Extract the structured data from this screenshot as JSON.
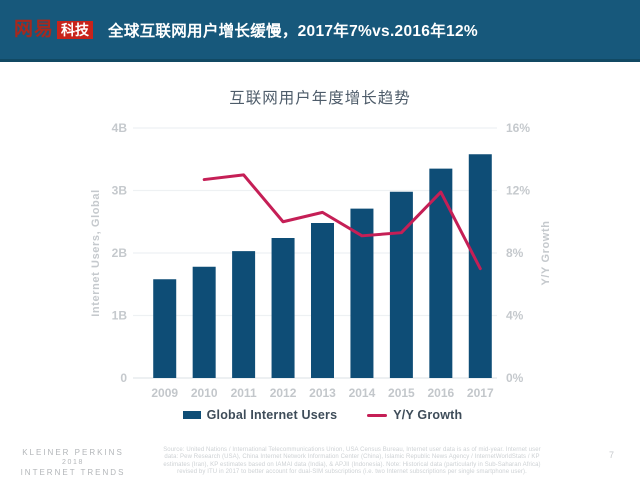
{
  "header": {
    "logo_brand": "网易",
    "logo_sub": "科技",
    "title": "全球互联网用户增长缓慢，2017年7%vs.2016年12%"
  },
  "chart_data": {
    "type": "bar",
    "title": "互联网用户年度增长趋势",
    "categories": [
      "2009",
      "2010",
      "2011",
      "2012",
      "2013",
      "2014",
      "2015",
      "2016",
      "2017"
    ],
    "series": [
      {
        "name": "Global Internet Users",
        "render": "bar",
        "axis": "left",
        "unit": "B",
        "color": "#0E4D76",
        "values": [
          1.58,
          1.78,
          2.03,
          2.24,
          2.48,
          2.71,
          2.98,
          3.35,
          3.58
        ]
      },
      {
        "name": "Y/Y Growth",
        "render": "line",
        "axis": "right",
        "unit": "%",
        "color": "#C51F56",
        "values": [
          null,
          12.7,
          13.0,
          10.0,
          10.6,
          9.1,
          9.3,
          11.9,
          7.0
        ]
      }
    ],
    "left_axis": {
      "label": "Internet Users, Global",
      "min": 0,
      "max": 4,
      "ticks": [
        "0",
        "1B",
        "2B",
        "3B",
        "4B"
      ]
    },
    "right_axis": {
      "label": "Y/Y Growth",
      "min": 0,
      "max": 16,
      "ticks": [
        "0%",
        "4%",
        "8%",
        "12%",
        "16%"
      ]
    },
    "grid": true,
    "legend_position": "bottom"
  },
  "footer": {
    "brand_lines": [
      "KLEINER PERKINS",
      "2018",
      "INTERNET TRENDS"
    ],
    "source_lines": [
      "Source: United Nations / International Telecommunications Union, USA Census Bureau, Internet user data is as of mid-year. Internet user",
      "data: Pew Research (USA), China Internet Network Information Center (China), Islamic Republic News Agency / InternetWorldStats / KP",
      "estimates (Iran), KP estimates based on IAMAI data (India), & APJII (Indonesia). Note: Historical data (particularly in Sub-Saharan Africa)",
      "revised by ITU in 2017 to better account for dual-SIM subscriptions (i.e. two Internet subscriptions per single smartphone user)."
    ],
    "page_number": "7"
  }
}
